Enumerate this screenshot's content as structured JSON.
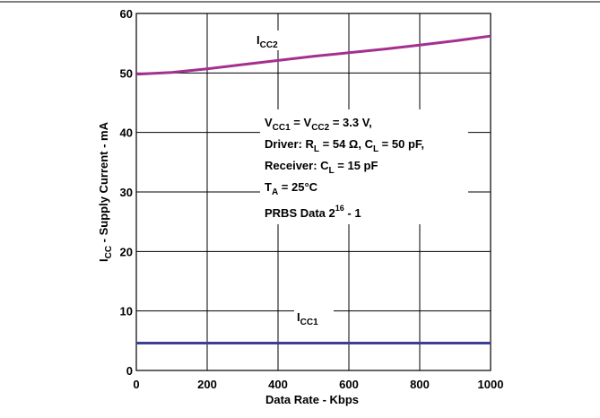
{
  "chart_data": {
    "type": "line",
    "xlabel": "Data Rate - Kbps",
    "ylabel_main": "I",
    "ylabel_sub": "CC",
    "ylabel_rest": " - Supply Current - mA",
    "xlim": [
      0,
      1000
    ],
    "ylim": [
      0,
      60
    ],
    "x_ticks": [
      "0",
      "200",
      "400",
      "600",
      "800",
      "1000"
    ],
    "y_ticks": [
      "0",
      "10",
      "20",
      "30",
      "40",
      "50",
      "60"
    ],
    "grid": true,
    "series": [
      {
        "name_main": "I",
        "name_sub": "CC2",
        "color": "#a3308f",
        "x": [
          0,
          100,
          200,
          300,
          400,
          500,
          600,
          700,
          800,
          900,
          1000
        ],
        "y": [
          49.8,
          50.1,
          50.7,
          51.4,
          52.1,
          52.8,
          53.4,
          54.0,
          54.7,
          55.4,
          56.2
        ]
      },
      {
        "name_main": "I",
        "name_sub": "CC1",
        "color": "#3b3f94",
        "x": [
          0,
          200,
          400,
          600,
          800,
          1000
        ],
        "y": [
          4.6,
          4.6,
          4.6,
          4.6,
          4.6,
          4.6
        ]
      }
    ],
    "annotations": {
      "line1": {
        "a": "V",
        "a_sub": "CC1",
        "b": " = V",
        "b_sub": "CC2",
        "c": " = 3.3 V,"
      },
      "line2": {
        "a": "Driver: R",
        "a_sub": "L",
        "b": " = 54 Ω, C",
        "b_sub": "L",
        "c": " = 50 pF,"
      },
      "line3": {
        "a": "Receiver: C",
        "a_sub": "L",
        "b": " = 15 pF"
      },
      "line4": {
        "a": "T",
        "a_sub": "A",
        "b": " = 25°C"
      },
      "line5": {
        "a": "PRBS Data 2",
        "a_sup": "16",
        "b": " - 1"
      }
    }
  }
}
